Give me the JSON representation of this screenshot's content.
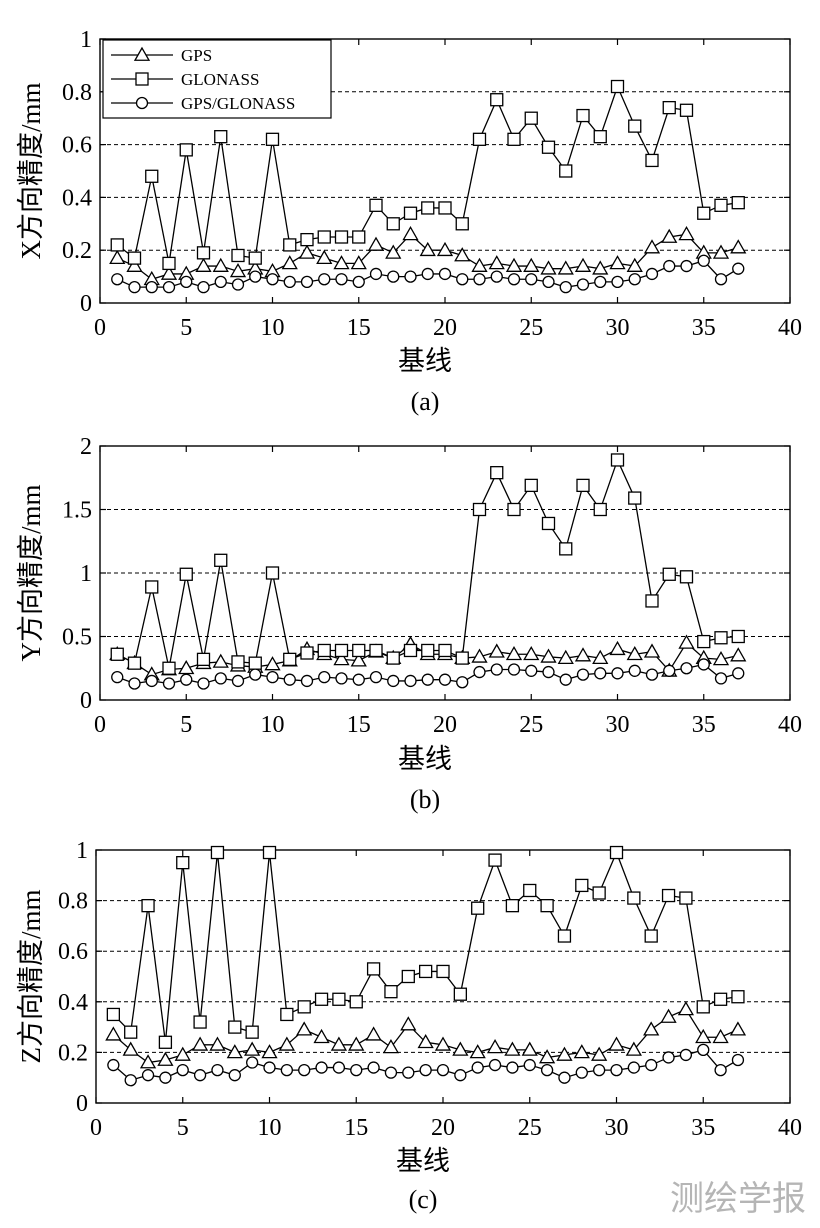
{
  "watermark": "测绘学报",
  "chart_data": [
    {
      "type": "line",
      "caption": "(a)",
      "ylabel": "X方向精度/mm",
      "xlabel": "基线",
      "xlim": [
        0,
        40
      ],
      "ylim": [
        0,
        1
      ],
      "xticks": [
        0,
        5,
        10,
        15,
        20,
        25,
        30,
        35,
        40
      ],
      "yticks": [
        0,
        0.2,
        0.4,
        0.6,
        0.8,
        1
      ],
      "ytick_labels": [
        "0",
        "0.2",
        "0.4",
        "0.6",
        "0.8",
        "1"
      ],
      "grid": "horizontal dashed",
      "legend_position": "top-left",
      "x": [
        1,
        2,
        3,
        4,
        5,
        6,
        7,
        8,
        9,
        10,
        11,
        12,
        13,
        14,
        15,
        16,
        17,
        18,
        19,
        20,
        21,
        22,
        23,
        24,
        25,
        26,
        27,
        28,
        29,
        30,
        31,
        32,
        33,
        34,
        35,
        36,
        37
      ],
      "series": [
        {
          "name": "GPS",
          "marker": "triangle",
          "values": [
            0.17,
            0.14,
            0.09,
            0.11,
            0.11,
            0.14,
            0.14,
            0.12,
            0.13,
            0.12,
            0.15,
            0.19,
            0.17,
            0.15,
            0.15,
            0.22,
            0.19,
            0.26,
            0.2,
            0.2,
            0.18,
            0.14,
            0.15,
            0.14,
            0.14,
            0.13,
            0.13,
            0.14,
            0.13,
            0.15,
            0.14,
            0.21,
            0.25,
            0.26,
            0.19,
            0.19,
            0.21
          ]
        },
        {
          "name": "GLONASS",
          "marker": "square",
          "values": [
            0.22,
            0.17,
            0.48,
            0.15,
            0.58,
            0.19,
            0.63,
            0.18,
            0.17,
            0.62,
            0.22,
            0.24,
            0.25,
            0.25,
            0.25,
            0.37,
            0.3,
            0.34,
            0.36,
            0.36,
            0.3,
            0.62,
            0.77,
            0.62,
            0.7,
            0.59,
            0.5,
            0.71,
            0.63,
            0.82,
            0.67,
            0.54,
            0.74,
            0.73,
            0.34,
            0.37,
            0.38
          ]
        },
        {
          "name": "GPS/GLONASS",
          "marker": "circle",
          "values": [
            0.09,
            0.06,
            0.06,
            0.06,
            0.08,
            0.06,
            0.08,
            0.07,
            0.1,
            0.09,
            0.08,
            0.08,
            0.09,
            0.09,
            0.08,
            0.11,
            0.1,
            0.1,
            0.11,
            0.11,
            0.09,
            0.09,
            0.1,
            0.09,
            0.09,
            0.08,
            0.06,
            0.07,
            0.08,
            0.08,
            0.09,
            0.11,
            0.14,
            0.14,
            0.16,
            0.09,
            0.13
          ]
        }
      ]
    },
    {
      "type": "line",
      "caption": "(b)",
      "ylabel": "Y方向精度/mm",
      "xlabel": "基线",
      "xlim": [
        0,
        40
      ],
      "ylim": [
        0,
        2
      ],
      "xticks": [
        0,
        5,
        10,
        15,
        20,
        25,
        30,
        35,
        40
      ],
      "yticks": [
        0,
        0.5,
        1,
        1.5,
        2
      ],
      "ytick_labels": [
        "0",
        "0.5",
        "1",
        "1.5",
        "2"
      ],
      "grid": "horizontal dashed",
      "x": [
        1,
        2,
        3,
        4,
        5,
        6,
        7,
        8,
        9,
        10,
        11,
        12,
        13,
        14,
        15,
        16,
        17,
        18,
        19,
        20,
        21,
        22,
        23,
        24,
        25,
        26,
        27,
        28,
        29,
        30,
        31,
        32,
        33,
        34,
        35,
        36,
        37
      ],
      "series": [
        {
          "name": "GPS",
          "marker": "triangle",
          "values": [
            0.36,
            0.29,
            0.2,
            0.24,
            0.25,
            0.29,
            0.3,
            0.27,
            0.26,
            0.28,
            0.31,
            0.4,
            0.36,
            0.32,
            0.31,
            0.38,
            0.33,
            0.44,
            0.36,
            0.36,
            0.33,
            0.34,
            0.38,
            0.36,
            0.36,
            0.34,
            0.33,
            0.35,
            0.33,
            0.4,
            0.36,
            0.38,
            0.23,
            0.45,
            0.33,
            0.32,
            0.35
          ]
        },
        {
          "name": "GLONASS",
          "marker": "square",
          "values": [
            0.36,
            0.29,
            0.89,
            0.25,
            0.99,
            0.32,
            1.1,
            0.3,
            0.29,
            1.0,
            0.32,
            0.37,
            0.39,
            0.39,
            0.39,
            0.39,
            0.33,
            0.39,
            0.39,
            0.39,
            0.33,
            1.5,
            1.79,
            1.5,
            1.69,
            1.39,
            1.19,
            1.69,
            1.5,
            1.89,
            1.59,
            0.78,
            0.99,
            0.97,
            0.46,
            0.49,
            0.5
          ]
        },
        {
          "name": "GPS/GLONASS",
          "marker": "circle",
          "values": [
            0.18,
            0.13,
            0.15,
            0.13,
            0.16,
            0.13,
            0.17,
            0.15,
            0.2,
            0.18,
            0.16,
            0.15,
            0.18,
            0.17,
            0.16,
            0.18,
            0.15,
            0.15,
            0.16,
            0.16,
            0.14,
            0.22,
            0.24,
            0.24,
            0.23,
            0.22,
            0.16,
            0.2,
            0.21,
            0.21,
            0.23,
            0.2,
            0.23,
            0.25,
            0.28,
            0.17,
            0.21
          ]
        }
      ]
    },
    {
      "type": "line",
      "caption": "(c)",
      "ylabel": "Z方向精度/mm",
      "xlabel": "基线",
      "xlim": [
        0,
        40
      ],
      "ylim": [
        0,
        1
      ],
      "xticks": [
        0,
        5,
        10,
        15,
        20,
        25,
        30,
        35,
        40
      ],
      "yticks": [
        0,
        0.2,
        0.4,
        0.6,
        0.8,
        1
      ],
      "ytick_labels": [
        "0",
        "0.2",
        "0.4",
        "0.6",
        "0.8",
        "1"
      ],
      "grid": "horizontal dashed",
      "x": [
        1,
        2,
        3,
        4,
        5,
        6,
        7,
        8,
        9,
        10,
        11,
        12,
        13,
        14,
        15,
        16,
        17,
        18,
        19,
        20,
        21,
        22,
        23,
        24,
        25,
        26,
        27,
        28,
        29,
        30,
        31,
        32,
        33,
        34,
        35,
        36,
        37
      ],
      "series": [
        {
          "name": "GPS",
          "marker": "triangle",
          "values": [
            0.27,
            0.21,
            0.16,
            0.17,
            0.19,
            0.23,
            0.23,
            0.2,
            0.21,
            0.2,
            0.23,
            0.29,
            0.26,
            0.23,
            0.23,
            0.27,
            0.22,
            0.31,
            0.24,
            0.23,
            0.21,
            0.2,
            0.22,
            0.21,
            0.21,
            0.18,
            0.19,
            0.2,
            0.19,
            0.23,
            0.21,
            0.29,
            0.34,
            0.37,
            0.26,
            0.26,
            0.29
          ]
        },
        {
          "name": "GLONASS",
          "marker": "square",
          "values": [
            0.35,
            0.28,
            0.78,
            0.24,
            0.95,
            0.32,
            0.99,
            0.3,
            0.28,
            0.99,
            0.35,
            0.38,
            0.41,
            0.41,
            0.4,
            0.53,
            0.44,
            0.5,
            0.52,
            0.52,
            0.43,
            0.77,
            0.96,
            0.78,
            0.84,
            0.78,
            0.66,
            0.86,
            0.83,
            0.99,
            0.81,
            0.66,
            0.82,
            0.81,
            0.38,
            0.41,
            0.42
          ]
        },
        {
          "name": "GPS/GLONASS",
          "marker": "circle",
          "values": [
            0.15,
            0.09,
            0.11,
            0.1,
            0.13,
            0.11,
            0.13,
            0.11,
            0.16,
            0.14,
            0.13,
            0.13,
            0.14,
            0.14,
            0.13,
            0.14,
            0.12,
            0.12,
            0.13,
            0.13,
            0.11,
            0.14,
            0.15,
            0.14,
            0.15,
            0.13,
            0.1,
            0.12,
            0.13,
            0.13,
            0.14,
            0.15,
            0.18,
            0.19,
            0.21,
            0.13,
            0.17
          ]
        }
      ]
    }
  ]
}
